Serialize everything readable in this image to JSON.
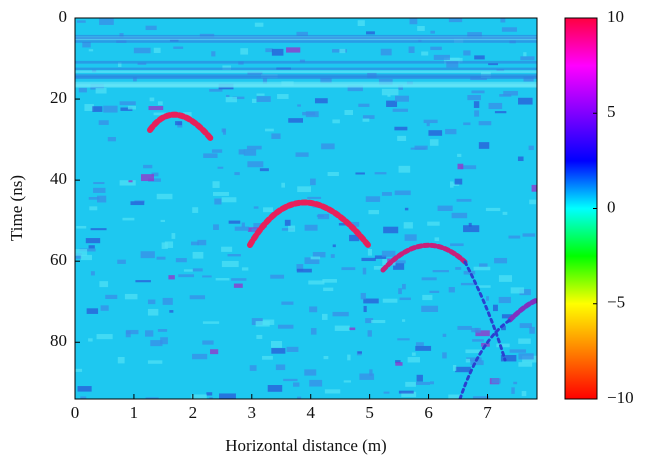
{
  "chart_data": {
    "type": "heatmap",
    "xlabel": "Horizontal distance (m)",
    "ylabel": "Time (ns)",
    "xlim": [
      0,
      7.84
    ],
    "xticks": [
      0,
      1,
      2,
      3,
      4,
      5,
      6,
      7
    ],
    "ylim": [
      94,
      0
    ],
    "yticks": [
      0,
      20,
      40,
      60,
      80
    ],
    "clim": [
      -10,
      10
    ],
    "cticks": [
      {
        "value": 10,
        "label": "10"
      },
      {
        "value": 5,
        "label": "5"
      },
      {
        "value": 0,
        "label": "0"
      },
      {
        "value": -5,
        "label": "−5"
      },
      {
        "value": -10,
        "label": "−10"
      }
    ],
    "colormap": [
      "#ff0000",
      "#ff8000",
      "#ffff00",
      "#00ff00",
      "#00ffff",
      "#0000ff",
      "#8000ff",
      "#ff00ff",
      "#ff0040"
    ]
  }
}
